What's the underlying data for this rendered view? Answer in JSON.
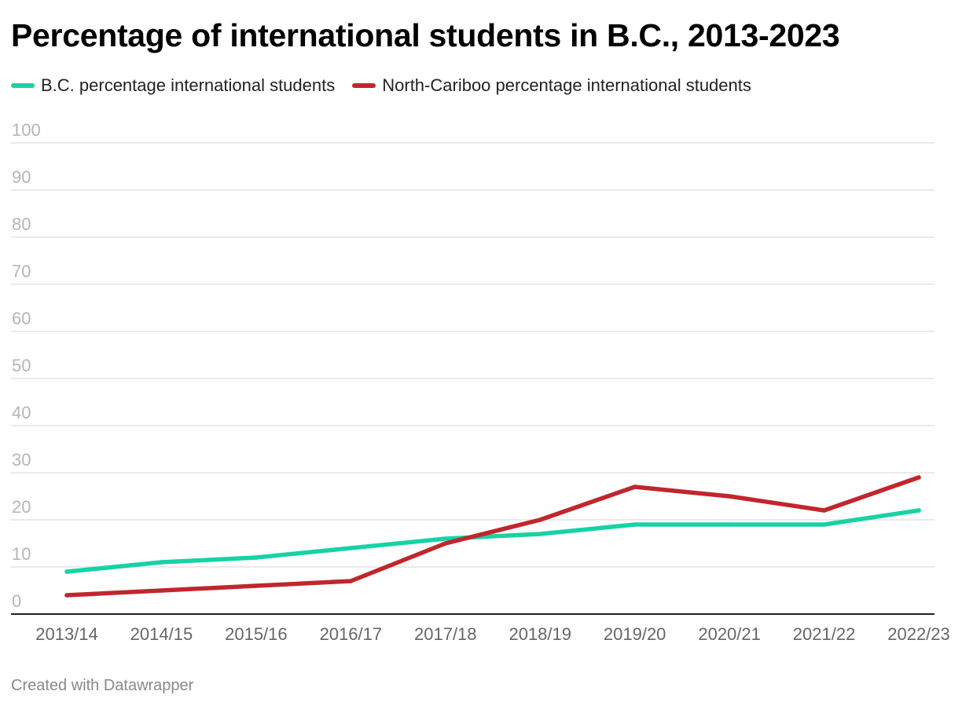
{
  "title": "Percentage of international students in B.C., 2013-2023",
  "footer": "Created with Datawrapper",
  "chart_data": {
    "type": "line",
    "title": "Percentage of international students in B.C., 2013-2023",
    "xlabel": "",
    "ylabel": "",
    "ylim": [
      0,
      100
    ],
    "yticks": [
      "0",
      "10",
      "20",
      "30",
      "40",
      "50",
      "60",
      "70",
      "80",
      "90",
      "100"
    ],
    "grid": true,
    "legend": "top-left",
    "categories": [
      "2013/14",
      "2014/15",
      "2015/16",
      "2016/17",
      "2017/18",
      "2018/19",
      "2019/20",
      "2020/21",
      "2021/22",
      "2022/23"
    ],
    "series": [
      {
        "name": "B.C. percentage international students",
        "color": "#18d2a4",
        "values": [
          9,
          11,
          12,
          14,
          16,
          17,
          19,
          19,
          19,
          22
        ]
      },
      {
        "name": "North-Cariboo percentage international students",
        "color": "#c0272d",
        "values": [
          4,
          5,
          6,
          7,
          15,
          20,
          27,
          25,
          22,
          29
        ]
      }
    ]
  }
}
